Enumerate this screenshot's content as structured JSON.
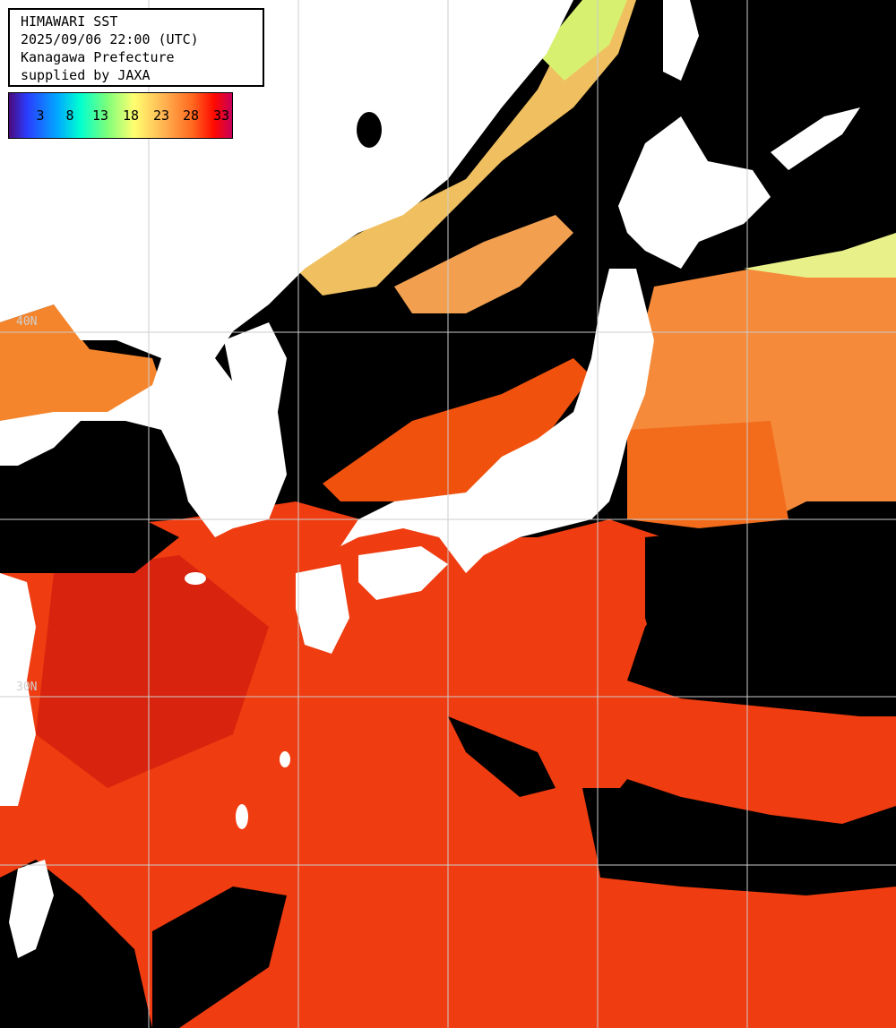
{
  "header": {
    "line1": "HIMAWARI SST",
    "line2": "2025/09/06 22:00 (UTC)",
    "line3": "Kanagawa Prefecture",
    "line4": "supplied by JAXA"
  },
  "scale": {
    "labels": [
      "3",
      "8",
      "13",
      "18",
      "23",
      "28",
      "33"
    ]
  },
  "grid_labels": {
    "lat40": "40N",
    "lat30": "30N"
  },
  "colors": {
    "land": "#ffffff",
    "cloud_nodata": "#000000",
    "sea_warm": "#f03a0a",
    "sea_mid": "#ff8a30",
    "sea_cool": "#f3d66a",
    "grid": "#cccccc"
  }
}
